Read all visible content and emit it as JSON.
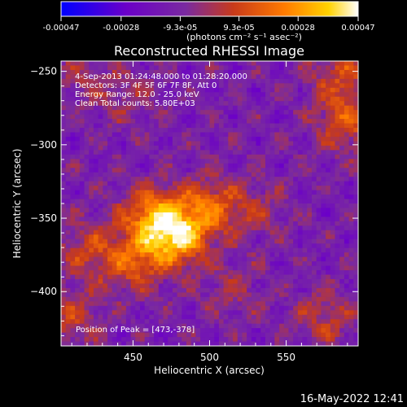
{
  "colorbar": {
    "ticks": [
      "-0.00047",
      "-0.00028",
      "-9.3e-05",
      "9.3e-05",
      "0.00028",
      "0.00047"
    ],
    "unit_label": "(photons cm⁻² s⁻¹ asec⁻²)"
  },
  "annotations": {
    "time": "4-Sep-2013 01:24:48.000 to 01:28:20.000",
    "detectors": "Detectors: 3F 4F 5F 6F 7F 8F, Att 0",
    "energy": "Energy Range: 12.0 - 25.0 keV",
    "clean": "Clean     Total counts: 5.80E+03",
    "peak": "Position of Peak = [473,-378]"
  },
  "footer": {
    "date": "16-May-2022 12:41"
  },
  "chart_data": {
    "type": "heatmap",
    "title": "Reconstructed RHESSI Image",
    "xlabel": "Heliocentric X (arcsec)",
    "ylabel": "Heliocentric Y (arcsec)",
    "xlim": [
      403,
      597
    ],
    "ylim": [
      -437,
      -243
    ],
    "xticks": [
      450,
      500,
      550
    ],
    "yticks": [
      -250,
      -300,
      -350,
      -400
    ],
    "colorbar_range": [
      -0.00047,
      0.00047
    ],
    "colormap": [
      "#0000ff",
      "#6b00c8",
      "#7a2aa0",
      "#c83a1a",
      "#ff7a00",
      "#ffd200",
      "#ffffff"
    ],
    "peak_position": [
      473,
      -378
    ],
    "sources": [
      {
        "x": 478,
        "y": -362,
        "strength": 0.00047
      },
      {
        "x": 462,
        "y": -348,
        "strength": 0.00032
      },
      {
        "x": 450,
        "y": -380,
        "strength": 0.00025
      },
      {
        "x": 500,
        "y": -342,
        "strength": 0.00026
      },
      {
        "x": 420,
        "y": -372,
        "strength": 0.00018
      },
      {
        "x": 590,
        "y": -285,
        "strength": 0.00024
      },
      {
        "x": 585,
        "y": -252,
        "strength": 0.0002
      },
      {
        "x": 575,
        "y": -418,
        "strength": 0.00016
      },
      {
        "x": 410,
        "y": -418,
        "strength": 0.00017
      },
      {
        "x": 530,
        "y": -345,
        "strength": 0.00012
      },
      {
        "x": 445,
        "y": -268,
        "strength": 0.0001
      },
      {
        "x": 415,
        "y": -255,
        "strength": 0.0001
      },
      {
        "x": 515,
        "y": -400,
        "strength": 0.00011
      }
    ]
  }
}
